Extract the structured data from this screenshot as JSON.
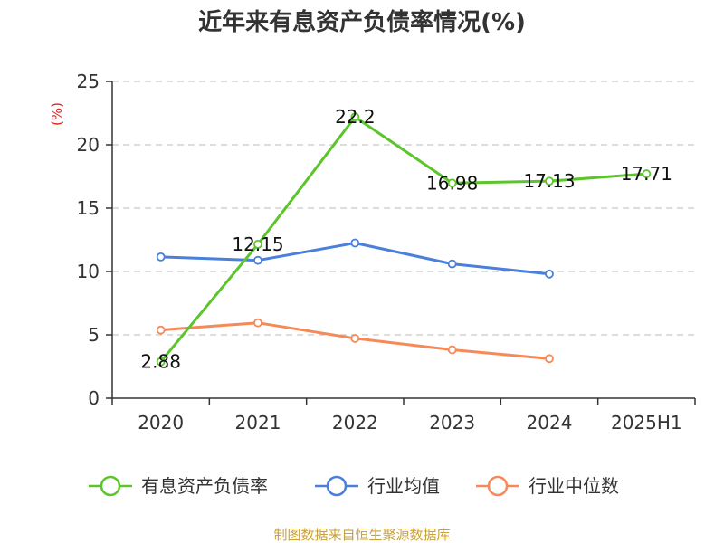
{
  "chart_data": {
    "type": "line",
    "title": "近年来有息资产负债率情况(%)",
    "y_unit": "(%)",
    "categories": [
      "2020",
      "2021",
      "2022",
      "2023",
      "2024",
      "2025H1"
    ],
    "ylim": [
      0,
      25
    ],
    "yticks": [
      0,
      5,
      10,
      15,
      20,
      25
    ],
    "grid": true,
    "legend_position": "bottom",
    "series": [
      {
        "name": "有息资产负债率",
        "color": "#5cc52b",
        "values": [
          2.88,
          12.15,
          22.2,
          16.98,
          17.13,
          17.71
        ],
        "labels": [
          "2.88",
          "12.15",
          "22.2",
          "16.98",
          "17.13",
          "17.71"
        ]
      },
      {
        "name": "行业均值",
        "color": "#4a7fdc",
        "values": [
          11.15,
          10.88,
          12.25,
          10.6,
          9.8,
          null
        ]
      },
      {
        "name": "行业中位数",
        "color": "#f58a58",
        "values": [
          5.38,
          5.95,
          4.72,
          3.82,
          3.12,
          null
        ]
      }
    ]
  },
  "colors": {
    "unit_label": "#e0201b",
    "source_text": "#c9a13a",
    "axis": "#333333",
    "grid": "#bbbbbb"
  },
  "source": "制图数据来自恒生聚源数据库"
}
